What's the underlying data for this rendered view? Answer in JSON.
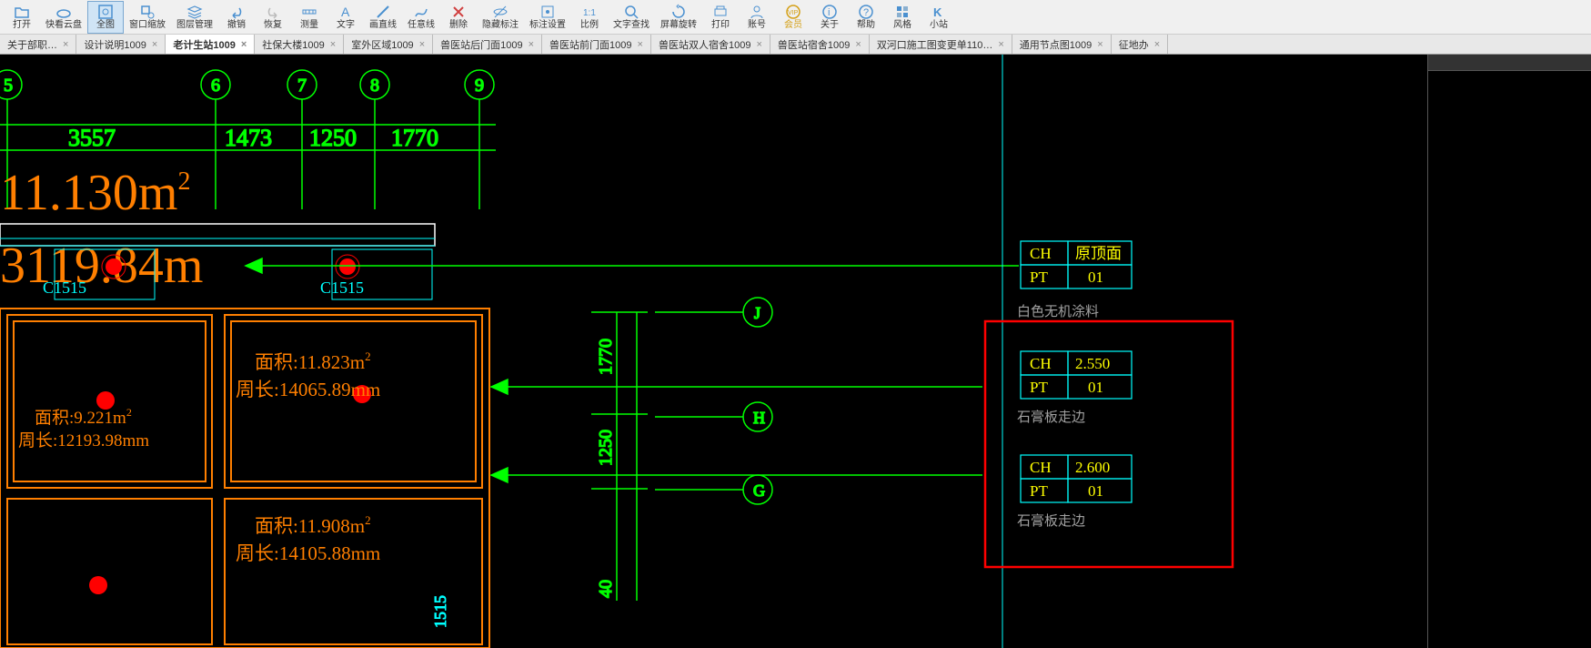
{
  "toolbar": [
    {
      "name": "open",
      "label": "打开",
      "color": "#2a7ab0"
    },
    {
      "name": "cloud",
      "label": "快看云盘",
      "color": "#2a7ab0"
    },
    {
      "name": "full",
      "label": "全图",
      "color": "#2a7ab0",
      "active": true
    },
    {
      "name": "winzoom",
      "label": "窗口缩放",
      "color": "#2a7ab0"
    },
    {
      "name": "layer",
      "label": "图层管理",
      "color": "#2a7ab0"
    },
    {
      "name": "undo",
      "label": "撤销",
      "color": "#2a7ab0"
    },
    {
      "name": "redo",
      "label": "恢复",
      "color": "#999"
    },
    {
      "name": "measure",
      "label": "测量",
      "color": "#2a7ab0"
    },
    {
      "name": "text",
      "label": "文字",
      "color": "#2a7ab0"
    },
    {
      "name": "line",
      "label": "画直线",
      "color": "#2a7ab0"
    },
    {
      "name": "anyline",
      "label": "任意线",
      "color": "#2a7ab0"
    },
    {
      "name": "delete",
      "label": "删除",
      "color": "#d04040"
    },
    {
      "name": "hide",
      "label": "隐藏标注",
      "color": "#2a7ab0"
    },
    {
      "name": "marksettings",
      "label": "标注设置",
      "color": "#2a7ab0"
    },
    {
      "name": "scale",
      "label": "比例",
      "color": "#2a7ab0"
    },
    {
      "name": "textfind",
      "label": "文字查找",
      "color": "#2a7ab0"
    },
    {
      "name": "rotate",
      "label": "屏幕旋转",
      "color": "#2a7ab0"
    },
    {
      "name": "print",
      "label": "打印",
      "color": "#2a7ab0"
    },
    {
      "name": "account",
      "label": "账号",
      "color": "#2a7ab0"
    },
    {
      "name": "vip",
      "label": "会员",
      "color": "#d4a017",
      "vip": true
    },
    {
      "name": "about",
      "label": "关于",
      "color": "#2a7ab0"
    },
    {
      "name": "help",
      "label": "帮助",
      "color": "#2a7ab0"
    },
    {
      "name": "style",
      "label": "风格",
      "color": "#2a7ab0"
    },
    {
      "name": "xiaozhan",
      "label": "小站",
      "color": "#2a7ab0"
    }
  ],
  "tabs": [
    {
      "name": "tab1",
      "label": "关于部职…"
    },
    {
      "name": "tab2",
      "label": "设计说明1009"
    },
    {
      "name": "tab3",
      "label": "老计生站1009",
      "active": true
    },
    {
      "name": "tab4",
      "label": "社保大楼1009"
    },
    {
      "name": "tab5",
      "label": "室外区域1009"
    },
    {
      "name": "tab6",
      "label": "兽医站后门面1009"
    },
    {
      "name": "tab7",
      "label": "兽医站前门面1009"
    },
    {
      "name": "tab8",
      "label": "兽医站双人宿舍1009"
    },
    {
      "name": "tab9",
      "label": "兽医站宿舍1009"
    },
    {
      "name": "tab10",
      "label": "双河口施工图变更单110…"
    },
    {
      "name": "tab11",
      "label": "通用节点图1009"
    },
    {
      "name": "tab12",
      "label": "征地办"
    }
  ],
  "grid_numbers": [
    "5",
    "",
    "6",
    "",
    "7",
    "",
    "8",
    "",
    "9"
  ],
  "dims_top": [
    "3557",
    "1473",
    "1250",
    "1770"
  ],
  "area_text_big1": "11.130m",
  "area_text_big1_sup": "2",
  "area_text_big2": "3119.84m",
  "area_text_big2_sup": "",
  "c1515": "C1515",
  "room1_area": "面积:9.221m",
  "room1_area_sup": "2",
  "room1_peri": "周长:12193.98mm",
  "room2_area": "面积:11.823m",
  "room2_area_sup": "2",
  "room2_peri": "周长:14065.89mm",
  "room3_area": "面积:11.908m",
  "room3_area_sup": "2",
  "room3_peri": "周长:14105.88mm",
  "axis_letters": [
    "J",
    "H",
    "G"
  ],
  "vert_dims": [
    "1770",
    "1250"
  ],
  "vert_dim_bottom": "40",
  "legend1": {
    "ch": "CH",
    "ch_val": "原顶面",
    "pt": "PT",
    "pt_val": "01",
    "note": "白色无机涂料"
  },
  "legend2": {
    "ch": "CH",
    "ch_val": "2.550",
    "pt": "PT",
    "pt_val": "01",
    "note": "石膏板走边"
  },
  "legend3": {
    "ch": "CH",
    "ch_val": "2.600",
    "pt": "PT",
    "pt_val": "01",
    "note": "石膏板走边"
  },
  "colors": {
    "orange": "#ff7f00",
    "green": "#00ff00",
    "cyan": "#00ffff",
    "yellow": "#ffff00",
    "red": "#ff0000",
    "grey": "#a0a0a0"
  }
}
